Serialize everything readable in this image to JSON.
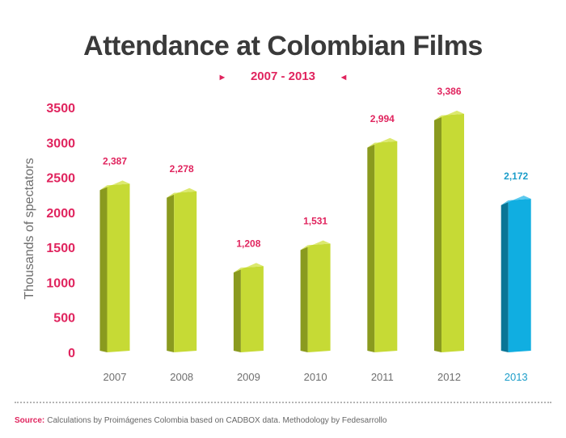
{
  "chart_data": {
    "type": "bar",
    "title": "Attendance at Colombian Films",
    "subtitle": "2007 - 2013",
    "xlabel": "",
    "ylabel": "Thousands of spectators",
    "ylim": [
      0,
      3500
    ],
    "yticks": [
      0,
      500,
      1000,
      1500,
      2000,
      2500,
      3000,
      3500
    ],
    "ytick_labels": [
      "0",
      "500",
      "1000",
      "1500",
      "2000",
      "2500",
      "3000",
      "3500"
    ],
    "grid": false,
    "categories": [
      "2007",
      "2008",
      "2009",
      "2010",
      "2011",
      "2012",
      "2013"
    ],
    "values": [
      2387,
      2278,
      1208,
      1531,
      2994,
      3386,
      2172
    ],
    "data_labels": [
      "2,387",
      "2,278",
      "1,208",
      "1,531",
      "2,994",
      "3,386",
      "2,172"
    ],
    "highlight_index": 6
  },
  "source": {
    "label": "Source:",
    "text": "Calculations by Proimágenes Colombia based on CADBOX data. Methodology by Fedesarrollo"
  },
  "colors": {
    "bar_front": "#c6da35",
    "bar_side": "#8a9a1f",
    "bar_top": "#dce96e",
    "highlight_front": "#10aee1",
    "highlight_side": "#0a7596",
    "highlight_top": "#5cc9ee",
    "accent": "#e0245e",
    "highlight_text": "#1b9dc9",
    "axis_text": "#6e6e6e"
  }
}
